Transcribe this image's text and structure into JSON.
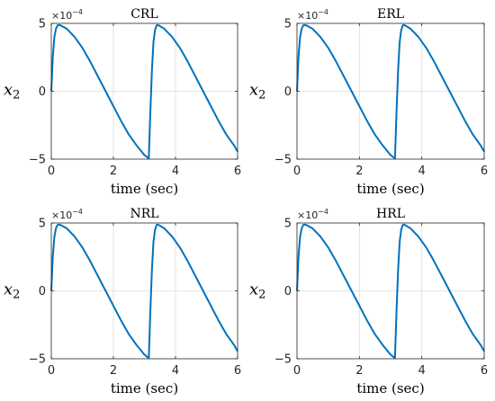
{
  "chart_data": [
    {
      "type": "line",
      "title": "CRL",
      "xlabel": "time (sec)",
      "ylabel": "x",
      "ylabel_subscript": "2",
      "y_multiplier": "×10",
      "y_multiplier_exp": "−4",
      "xlim": [
        0,
        6
      ],
      "ylim": [
        -5,
        5
      ],
      "xticks": [
        0,
        2,
        4,
        6
      ],
      "yticks": [
        -5,
        0,
        5
      ],
      "grid": true,
      "line_color": "#0072BD",
      "series": [
        {
          "x": [
            0,
            0.05,
            0.1,
            0.15,
            0.2,
            0.25,
            0.3,
            0.5,
            0.75,
            1.0,
            1.25,
            1.5,
            1.75,
            2.0,
            2.25,
            2.5,
            2.75,
            3.0,
            3.14,
            3.14,
            3.19,
            3.24,
            3.29,
            3.34,
            3.39,
            3.44,
            3.64,
            3.89,
            4.14,
            4.39,
            4.64,
            4.89,
            5.14,
            5.39,
            5.64,
            5.89,
            6.0
          ],
          "y": [
            0,
            2.6,
            4.0,
            4.6,
            4.85,
            4.88,
            4.85,
            4.6,
            4.0,
            3.2,
            2.2,
            1.1,
            0.0,
            -1.1,
            -2.2,
            -3.2,
            -4.0,
            -4.7,
            -4.95,
            -4.95,
            -1.5,
            1.5,
            3.6,
            4.5,
            4.85,
            4.88,
            4.6,
            4.0,
            3.2,
            2.2,
            1.1,
            0.0,
            -1.1,
            -2.2,
            -3.2,
            -4.0,
            -4.45
          ]
        }
      ]
    },
    {
      "type": "line",
      "title": "ERL",
      "xlabel": "time (sec)",
      "ylabel": "x",
      "ylabel_subscript": "2",
      "y_multiplier": "×10",
      "y_multiplier_exp": "−4",
      "xlim": [
        0,
        6
      ],
      "ylim": [
        -5,
        5
      ],
      "xticks": [
        0,
        2,
        4,
        6
      ],
      "yticks": [
        -5,
        0,
        5
      ],
      "grid": true,
      "line_color": "#0072BD",
      "series": [
        {
          "x": [
            0,
            0.05,
            0.1,
            0.15,
            0.2,
            0.25,
            0.3,
            0.5,
            0.75,
            1.0,
            1.25,
            1.5,
            1.75,
            2.0,
            2.25,
            2.5,
            2.75,
            3.0,
            3.14,
            3.14,
            3.19,
            3.24,
            3.29,
            3.34,
            3.39,
            3.44,
            3.64,
            3.89,
            4.14,
            4.39,
            4.64,
            4.89,
            5.14,
            5.39,
            5.64,
            5.89,
            6.0
          ],
          "y": [
            0,
            2.6,
            4.0,
            4.6,
            4.85,
            4.88,
            4.85,
            4.6,
            4.0,
            3.2,
            2.2,
            1.1,
            0.0,
            -1.1,
            -2.2,
            -3.2,
            -4.0,
            -4.7,
            -4.95,
            -4.95,
            -1.5,
            1.5,
            3.6,
            4.5,
            4.85,
            4.88,
            4.6,
            4.0,
            3.2,
            2.2,
            1.1,
            0.0,
            -1.1,
            -2.2,
            -3.2,
            -4.0,
            -4.45
          ]
        }
      ]
    },
    {
      "type": "line",
      "title": "NRL",
      "xlabel": "time (sec)",
      "ylabel": "x",
      "ylabel_subscript": "2",
      "y_multiplier": "×10",
      "y_multiplier_exp": "−4",
      "xlim": [
        0,
        6
      ],
      "ylim": [
        -5,
        5
      ],
      "xticks": [
        0,
        2,
        4,
        6
      ],
      "yticks": [
        -5,
        0,
        5
      ],
      "grid": true,
      "line_color": "#0072BD",
      "series": [
        {
          "x": [
            0,
            0.05,
            0.1,
            0.15,
            0.2,
            0.25,
            0.3,
            0.5,
            0.75,
            1.0,
            1.25,
            1.5,
            1.75,
            2.0,
            2.25,
            2.5,
            2.75,
            3.0,
            3.14,
            3.14,
            3.19,
            3.24,
            3.29,
            3.34,
            3.39,
            3.44,
            3.64,
            3.89,
            4.14,
            4.39,
            4.64,
            4.89,
            5.14,
            5.39,
            5.64,
            5.89,
            6.0
          ],
          "y": [
            0,
            2.6,
            4.0,
            4.6,
            4.85,
            4.88,
            4.85,
            4.6,
            4.0,
            3.2,
            2.2,
            1.1,
            0.0,
            -1.1,
            -2.2,
            -3.2,
            -4.0,
            -4.7,
            -4.95,
            -4.95,
            -1.5,
            1.5,
            3.6,
            4.5,
            4.85,
            4.88,
            4.6,
            4.0,
            3.2,
            2.2,
            1.1,
            0.0,
            -1.1,
            -2.2,
            -3.2,
            -4.0,
            -4.45
          ]
        }
      ]
    },
    {
      "type": "line",
      "title": "HRL",
      "xlabel": "time (sec)",
      "ylabel": "x",
      "ylabel_subscript": "2",
      "y_multiplier": "×10",
      "y_multiplier_exp": "−4",
      "xlim": [
        0,
        6
      ],
      "ylim": [
        -5,
        5
      ],
      "xticks": [
        0,
        2,
        4,
        6
      ],
      "yticks": [
        -5,
        0,
        5
      ],
      "grid": true,
      "line_color": "#0072BD",
      "series": [
        {
          "x": [
            0,
            0.05,
            0.1,
            0.15,
            0.2,
            0.25,
            0.3,
            0.5,
            0.75,
            1.0,
            1.25,
            1.5,
            1.75,
            2.0,
            2.25,
            2.5,
            2.75,
            3.0,
            3.14,
            3.14,
            3.19,
            3.24,
            3.29,
            3.34,
            3.39,
            3.44,
            3.64,
            3.89,
            4.14,
            4.39,
            4.64,
            4.89,
            5.14,
            5.39,
            5.64,
            5.89,
            6.0
          ],
          "y": [
            0,
            2.6,
            4.0,
            4.6,
            4.85,
            4.88,
            4.85,
            4.6,
            4.0,
            3.2,
            2.2,
            1.1,
            0.0,
            -1.1,
            -2.2,
            -3.2,
            -4.0,
            -4.7,
            -4.95,
            -4.95,
            -1.5,
            1.5,
            3.6,
            4.5,
            4.85,
            4.88,
            4.6,
            4.0,
            3.2,
            2.2,
            1.1,
            0.0,
            -1.1,
            -2.2,
            -3.2,
            -4.0,
            -4.45
          ]
        }
      ]
    }
  ]
}
